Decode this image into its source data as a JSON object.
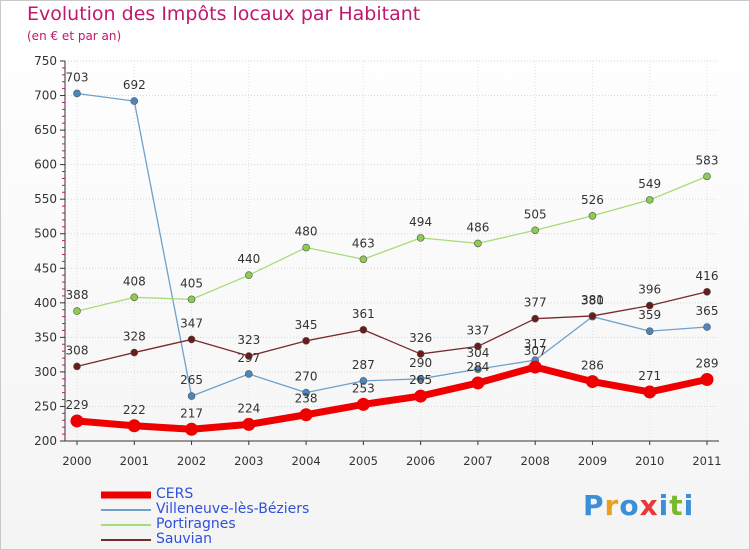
{
  "title": "Evolution des Impôts locaux par Habitant",
  "subtitle": "(en € et par an)",
  "logo": {
    "text": "Proxiti",
    "letter_colors": [
      "#3a8fd8",
      "#e8a020",
      "#3a8fd8",
      "#e83838",
      "#3a8fd8",
      "#7ab830",
      "#3a8fd8"
    ]
  },
  "colors": {
    "title": "#c0186e",
    "axis": "#333333",
    "legend_text": "#3050d8"
  },
  "chart_data": {
    "type": "line",
    "title": "Evolution des Impôts locaux par Habitant",
    "subtitle": "(en € et par an)",
    "xlabel": "",
    "ylabel": "",
    "x": [
      "2000",
      "2001",
      "2002",
      "2003",
      "2004",
      "2005",
      "2006",
      "2007",
      "2008",
      "2009",
      "2010",
      "2011"
    ],
    "ylim": [
      200,
      750
    ],
    "yticks": [
      200,
      250,
      300,
      350,
      400,
      450,
      500,
      550,
      600,
      650,
      700,
      750
    ],
    "grid": true,
    "legend": "bottom-left",
    "series": [
      {
        "name": "CERS",
        "color": "#ee0000",
        "point_color": "#ee0000",
        "width": 7,
        "values": [
          229,
          222,
          217,
          224,
          238,
          253,
          265,
          284,
          307,
          286,
          271,
          289
        ]
      },
      {
        "name": "Villeneuve-lès-Béziers",
        "color": "#6fa0cc",
        "point_color": "#4a87c0",
        "width": 1.3,
        "values": [
          703,
          692,
          265,
          297,
          270,
          287,
          290,
          304,
          317,
          380,
          359,
          365
        ]
      },
      {
        "name": "Portiragnes",
        "color": "#a8dc78",
        "point_color": "#8ccc50",
        "width": 1.3,
        "values": [
          388,
          408,
          405,
          440,
          480,
          463,
          494,
          486,
          505,
          526,
          549,
          583
        ]
      },
      {
        "name": "Sauvian",
        "color": "#7a2a2a",
        "point_color": "#6a1c1c",
        "width": 1.3,
        "values": [
          308,
          328,
          347,
          323,
          345,
          361,
          326,
          337,
          377,
          381,
          396,
          416
        ]
      }
    ]
  }
}
